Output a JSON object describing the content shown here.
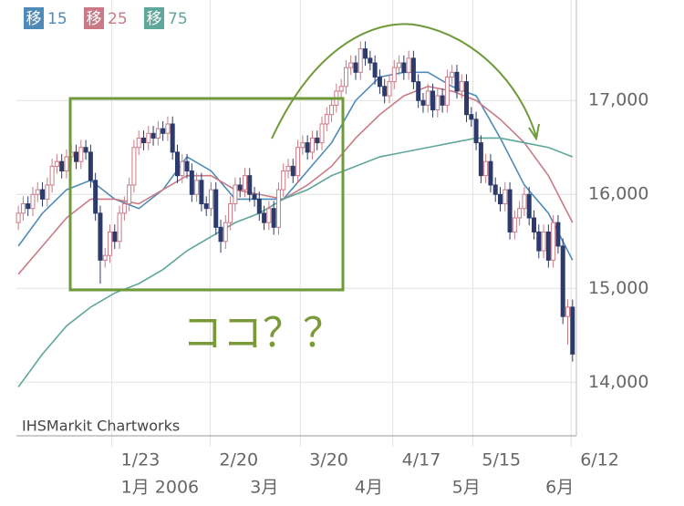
{
  "chart_data": {
    "type": "candlestick",
    "watermark": "IHSMarkit Chartworks",
    "annotation": "ココ？？",
    "legend_marker_text": "移",
    "up_color": "#c97a86",
    "down_color": "#2c3b6b",
    "grid": true,
    "xlim": [
      -0.4,
      115.8
    ],
    "ylim": [
      13430,
      18070
    ],
    "yticks": [
      {
        "value": 14000,
        "label": "14,000"
      },
      {
        "value": 15000,
        "label": "15,000"
      },
      {
        "value": 16000,
        "label": "16,000"
      },
      {
        "value": 17000,
        "label": "17,000"
      }
    ],
    "xticks": [
      {
        "value": 19.4,
        "label": "1/23"
      },
      {
        "value": 39.8,
        "label": "2/20"
      },
      {
        "value": 58.5,
        "label": "3/20"
      },
      {
        "value": 77.7,
        "label": "4/17"
      },
      {
        "value": 94.3,
        "label": "5/15"
      },
      {
        "value": 114.7,
        "label": "6/12"
      }
    ],
    "xticks_secondary": [
      {
        "value": 21.3,
        "label": "1月 2006"
      },
      {
        "value": 48.1,
        "label": "3月"
      },
      {
        "value": 69.8,
        "label": "4月"
      },
      {
        "value": 90,
        "label": "5月"
      },
      {
        "value": 109.4,
        "label": "6月"
      }
    ],
    "open": [
      15700,
      15800,
      15900,
      15850,
      16000,
      16050,
      15950,
      16100,
      16300,
      16350,
      16250,
      16400,
      16450,
      16350,
      16500,
      16450,
      16150,
      15800,
      15300,
      15350,
      15600,
      15500,
      15800,
      15900,
      16100,
      16500,
      16600,
      16550,
      16650,
      16600,
      16700,
      16650,
      16750,
      16450,
      16200,
      16350,
      16250,
      16000,
      16150,
      15900,
      15850,
      16050,
      15650,
      15500,
      15700,
      15900,
      16100,
      16050,
      16200,
      16000,
      15950,
      15800,
      15700,
      15850,
      15650,
      16050,
      16250,
      16300,
      16200,
      16500,
      16550,
      16450,
      16600,
      16550,
      16750,
      16850,
      16950,
      17100,
      17150,
      17350,
      17400,
      17300,
      17550,
      17450,
      17400,
      17250,
      17150,
      17050,
      17200,
      17350,
      17400,
      17300,
      17450,
      17200,
      17000,
      16950,
      17100,
      16900,
      17050,
      16950,
      17250,
      17300,
      17100,
      17200,
      16850,
      16800,
      16550,
      16200,
      16350,
      16100,
      16000,
      15900,
      16050,
      15600,
      15750,
      15850,
      16000,
      15750,
      15600,
      15400,
      15600,
      15300,
      15700,
      15450,
      14700,
      14800
    ],
    "high": [
      15880,
      15980,
      15980,
      16080,
      16130,
      16130,
      16180,
      16380,
      16430,
      16430,
      16480,
      16530,
      16530,
      16580,
      16580,
      16530,
      16230,
      15880,
      15430,
      15680,
      15680,
      15880,
      15980,
      16180,
      16580,
      16680,
      16680,
      16730,
      16730,
      16780,
      16780,
      16830,
      16830,
      16530,
      16430,
      16430,
      16330,
      16230,
      16230,
      15980,
      16130,
      16130,
      15730,
      15780,
      15980,
      16180,
      16180,
      16280,
      16280,
      16080,
      16030,
      15880,
      15930,
      15930,
      16130,
      16330,
      16380,
      16380,
      16580,
      16630,
      16630,
      16680,
      16680,
      16830,
      16930,
      17030,
      17180,
      17230,
      17430,
      17480,
      17480,
      17630,
      17630,
      17530,
      17480,
      17330,
      17230,
      17280,
      17430,
      17480,
      17480,
      17530,
      17530,
      17280,
      17080,
      17180,
      17180,
      17130,
      17130,
      17330,
      17380,
      17380,
      17280,
      17280,
      16930,
      16880,
      16630,
      16430,
      16430,
      16180,
      16080,
      16130,
      16130,
      15830,
      15930,
      16080,
      16080,
      15830,
      15680,
      15680,
      15680,
      15780,
      15780,
      15530,
      14880,
      14880
    ],
    "low": [
      15620,
      15720,
      15770,
      15770,
      15920,
      15870,
      15870,
      16020,
      16220,
      16170,
      16170,
      16320,
      16270,
      16270,
      16370,
      16070,
      15720,
      15050,
      15220,
      15270,
      15420,
      15420,
      15720,
      15820,
      16020,
      16420,
      16470,
      16470,
      16520,
      16520,
      16570,
      16570,
      16370,
      16120,
      16120,
      16170,
      15920,
      15920,
      15820,
      15770,
      15770,
      15570,
      15380,
      15420,
      15620,
      15820,
      15970,
      15970,
      15920,
      15870,
      15720,
      15620,
      15620,
      15570,
      15570,
      15970,
      16170,
      16120,
      16120,
      16420,
      16370,
      16370,
      16470,
      16470,
      16670,
      16770,
      16870,
      17020,
      17070,
      17270,
      17220,
      17220,
      17370,
      17320,
      17170,
      17070,
      16970,
      16970,
      17120,
      17270,
      17220,
      17220,
      17120,
      16920,
      16870,
      16870,
      16820,
      16820,
      16870,
      16870,
      17170,
      17020,
      17020,
      16770,
      16720,
      16470,
      16120,
      16120,
      16020,
      15920,
      15820,
      15820,
      15520,
      15520,
      15670,
      15770,
      15670,
      15520,
      15320,
      15320,
      15220,
      15220,
      15370,
      14620,
      14400,
      14220
    ],
    "close": [
      15800,
      15900,
      15850,
      16000,
      16050,
      15950,
      16100,
      16300,
      16350,
      16250,
      16400,
      16450,
      16350,
      16500,
      16450,
      16150,
      15800,
      15300,
      15350,
      15600,
      15500,
      15800,
      15900,
      16100,
      16500,
      16600,
      16550,
      16650,
      16600,
      16700,
      16650,
      16750,
      16450,
      16200,
      16350,
      16250,
      16000,
      16150,
      15900,
      15850,
      16050,
      15650,
      15500,
      15700,
      15900,
      16100,
      16050,
      16200,
      16000,
      15950,
      15800,
      15700,
      15850,
      15650,
      16050,
      16250,
      16300,
      16200,
      16500,
      16550,
      16450,
      16600,
      16550,
      16750,
      16850,
      16950,
      17100,
      17150,
      17350,
      17400,
      17300,
      17550,
      17450,
      17400,
      17250,
      17150,
      17050,
      17200,
      17350,
      17400,
      17300,
      17450,
      17200,
      17000,
      16950,
      17100,
      16900,
      17050,
      16950,
      17250,
      17300,
      17100,
      17200,
      16850,
      16800,
      16550,
      16200,
      16350,
      16100,
      16000,
      15900,
      16050,
      15600,
      15750,
      15850,
      16000,
      15750,
      15600,
      15400,
      15600,
      15300,
      15700,
      15450,
      14700,
      14800,
      14300
    ],
    "series": [
      {
        "name": "15",
        "color": "#4f8bb8",
        "x": [
          0,
          5,
          10,
          15,
          20,
          25,
          30,
          35,
          40,
          45,
          50,
          55,
          60,
          65,
          70,
          75,
          80,
          85,
          90,
          95,
          100,
          105,
          110,
          115
        ],
        "values": [
          15450,
          15800,
          16050,
          16150,
          15950,
          15850,
          16050,
          16400,
          16250,
          15950,
          15950,
          15950,
          16250,
          16550,
          17000,
          17250,
          17300,
          17300,
          17150,
          17050,
          16600,
          16100,
          15800,
          15300
        ]
      },
      {
        "name": "25",
        "color": "#c97a86",
        "x": [
          0,
          5,
          10,
          15,
          20,
          25,
          30,
          35,
          40,
          45,
          50,
          55,
          60,
          65,
          70,
          75,
          80,
          85,
          90,
          95,
          100,
          105,
          110,
          115
        ],
        "values": [
          15150,
          15450,
          15750,
          15950,
          15950,
          15900,
          16050,
          16200,
          16200,
          16050,
          16000,
          15950,
          16100,
          16300,
          16600,
          16850,
          17050,
          17150,
          17100,
          17000,
          16800,
          16550,
          16200,
          15700
        ]
      },
      {
        "name": "75",
        "color": "#5fa69b",
        "x": [
          0,
          5,
          10,
          15,
          20,
          25,
          30,
          35,
          40,
          45,
          50,
          55,
          60,
          65,
          70,
          75,
          80,
          85,
          90,
          95,
          100,
          105,
          110,
          115
        ],
        "values": [
          13950,
          14300,
          14600,
          14800,
          14950,
          15050,
          15200,
          15400,
          15550,
          15700,
          15800,
          15950,
          16050,
          16200,
          16300,
          16400,
          16450,
          16500,
          16550,
          16600,
          16600,
          16550,
          16500,
          16400
        ]
      }
    ]
  }
}
